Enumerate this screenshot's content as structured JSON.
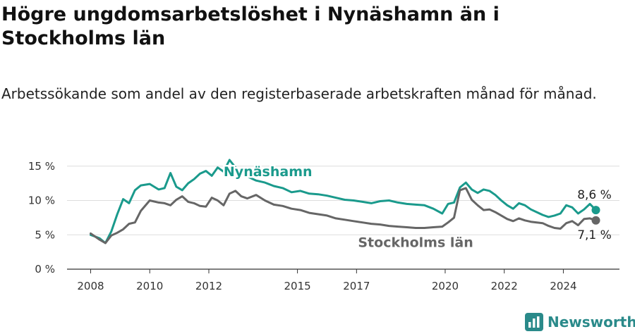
{
  "title": "Högre ungdomsarbetslöshet i Nynäshamn än i Stockholms län",
  "subtitle": "Arbetssökande som andel av den registerbaserade arbetskraften månad för månad.",
  "brand": {
    "name": "Newsworthy",
    "icon": "bar-chart-logo-icon",
    "color": "#2a8a8a"
  },
  "chart_data": {
    "type": "line",
    "x_unit": "year (decimal)",
    "ylim": [
      0,
      16
    ],
    "yticks": [
      0,
      5,
      10,
      15
    ],
    "ytick_labels": [
      "0 %",
      "5 %",
      "10 %",
      "15 %"
    ],
    "xticks": [
      2008,
      2010,
      2012,
      2015,
      2017,
      2020,
      2022,
      2024
    ],
    "xtick_labels": [
      "2008",
      "2010",
      "2012",
      "2015",
      "2017",
      "2020",
      "2022",
      "2024"
    ],
    "xlim": [
      2007.2,
      2025.9
    ],
    "grid": true,
    "series": [
      {
        "name": "Nynäshamn",
        "color": "#1a9a8c",
        "end_label": "8,6 %",
        "x": [
          2008.0,
          2008.3,
          2008.5,
          2008.7,
          2008.9,
          2009.1,
          2009.3,
          2009.5,
          2009.7,
          2010.0,
          2010.3,
          2010.5,
          2010.7,
          2010.9,
          2011.1,
          2011.3,
          2011.5,
          2011.7,
          2011.9,
          2012.1,
          2012.3,
          2012.5,
          2012.7,
          2012.9,
          2013.1,
          2013.3,
          2013.6,
          2013.9,
          2014.2,
          2014.5,
          2014.8,
          2015.1,
          2015.4,
          2015.7,
          2016.0,
          2016.3,
          2016.6,
          2016.9,
          2017.2,
          2017.5,
          2017.8,
          2018.1,
          2018.4,
          2018.7,
          2019.0,
          2019.3,
          2019.6,
          2019.9,
          2020.1,
          2020.3,
          2020.5,
          2020.7,
          2020.9,
          2021.1,
          2021.3,
          2021.5,
          2021.7,
          2021.9,
          2022.1,
          2022.3,
          2022.5,
          2022.7,
          2022.9,
          2023.1,
          2023.3,
          2023.5,
          2023.7,
          2023.9,
          2024.1,
          2024.3,
          2024.5,
          2024.7,
          2024.9,
          2025.1
        ],
        "y": [
          5.0,
          4.5,
          3.8,
          5.5,
          8.0,
          10.2,
          9.6,
          11.5,
          12.2,
          12.4,
          11.6,
          11.8,
          14.0,
          12.0,
          11.5,
          12.5,
          13.1,
          13.9,
          14.3,
          13.6,
          14.8,
          14.2,
          15.9,
          14.8,
          14.1,
          13.5,
          12.9,
          12.6,
          12.1,
          11.8,
          11.2,
          11.4,
          11.0,
          10.9,
          10.7,
          10.4,
          10.1,
          10.0,
          9.8,
          9.6,
          9.9,
          10.0,
          9.7,
          9.5,
          9.4,
          9.3,
          8.8,
          8.1,
          9.5,
          9.7,
          11.9,
          12.6,
          11.6,
          11.1,
          11.6,
          11.4,
          10.8,
          10.0,
          9.3,
          8.8,
          9.6,
          9.3,
          8.7,
          8.3,
          7.9,
          7.6,
          7.8,
          8.1,
          9.3,
          9.0,
          8.1,
          8.7,
          9.5,
          8.6
        ]
      },
      {
        "name": "Stockholms län",
        "color": "#666666",
        "end_label": "7,1 %",
        "x": [
          2008.0,
          2008.3,
          2008.5,
          2008.7,
          2008.9,
          2009.1,
          2009.3,
          2009.5,
          2009.7,
          2010.0,
          2010.3,
          2010.5,
          2010.7,
          2010.9,
          2011.1,
          2011.3,
          2011.5,
          2011.7,
          2011.9,
          2012.1,
          2012.3,
          2012.5,
          2012.7,
          2012.9,
          2013.1,
          2013.3,
          2013.6,
          2013.9,
          2014.2,
          2014.5,
          2014.8,
          2015.1,
          2015.4,
          2015.7,
          2016.0,
          2016.3,
          2016.6,
          2016.9,
          2017.2,
          2017.5,
          2017.8,
          2018.1,
          2018.4,
          2018.7,
          2019.0,
          2019.3,
          2019.6,
          2019.9,
          2020.1,
          2020.3,
          2020.5,
          2020.7,
          2020.9,
          2021.1,
          2021.3,
          2021.5,
          2021.7,
          2021.9,
          2022.1,
          2022.3,
          2022.5,
          2022.7,
          2022.9,
          2023.1,
          2023.3,
          2023.5,
          2023.7,
          2023.9,
          2024.1,
          2024.3,
          2024.5,
          2024.7,
          2024.9,
          2025.1
        ],
        "y": [
          5.2,
          4.3,
          3.8,
          4.9,
          5.3,
          5.8,
          6.6,
          6.8,
          8.5,
          10.0,
          9.7,
          9.6,
          9.3,
          10.1,
          10.6,
          9.8,
          9.6,
          9.2,
          9.1,
          10.4,
          10.0,
          9.3,
          11.0,
          11.4,
          10.6,
          10.3,
          10.8,
          10.0,
          9.4,
          9.2,
          8.8,
          8.6,
          8.2,
          8.0,
          7.8,
          7.4,
          7.2,
          7.0,
          6.8,
          6.6,
          6.5,
          6.3,
          6.2,
          6.1,
          6.0,
          6.0,
          6.1,
          6.2,
          6.8,
          7.5,
          11.5,
          11.8,
          10.1,
          9.3,
          8.6,
          8.7,
          8.3,
          7.8,
          7.3,
          7.0,
          7.4,
          7.1,
          6.9,
          6.8,
          6.7,
          6.3,
          6.0,
          5.9,
          6.7,
          7.0,
          6.4,
          7.3,
          7.4,
          7.1
        ]
      }
    ]
  }
}
